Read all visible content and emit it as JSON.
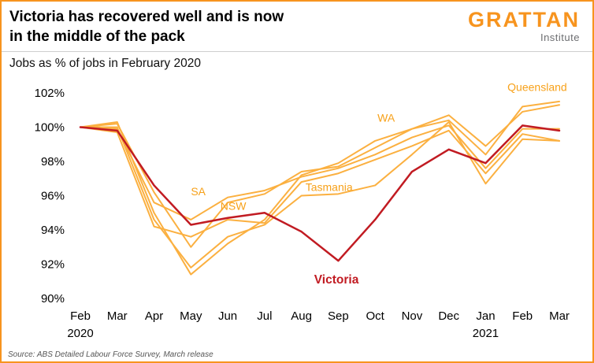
{
  "header": {
    "title_line1": "Victoria has recovered well and is now",
    "title_line2": "in the middle of the pack",
    "logo_brand": "GRATTAN",
    "logo_sub": "Institute"
  },
  "subtitle": "Jobs as % of jobs in February 2020",
  "source": "Source: ABS Detailed Labour Force Survey, March release",
  "colors": {
    "state_line": "#FBB040",
    "state_label": "#F7A11A",
    "victoria_line": "#C11B22",
    "brand_orange": "#F7941E"
  },
  "chart_data": {
    "type": "line",
    "title": "Jobs as % of jobs in February 2020",
    "x_labels": [
      "Feb",
      "Mar",
      "Apr",
      "May",
      "Jun",
      "Jul",
      "Aug",
      "Sep",
      "Oct",
      "Nov",
      "Dec",
      "Jan",
      "Feb",
      "Mar"
    ],
    "x_year_labels": [
      {
        "index": 0,
        "label": "2020"
      },
      {
        "index": 11,
        "label": "2021"
      }
    ],
    "ylim": [
      90,
      102
    ],
    "yticks": [
      90,
      92,
      94,
      96,
      98,
      100,
      102
    ],
    "ytick_suffix": "%",
    "grid": false,
    "legend": "inline-annotations",
    "series": [
      {
        "name": "NSW",
        "color": "#FBB040",
        "width": 2,
        "values": [
          100,
          99.7,
          94.2,
          93.6,
          94.6,
          94.4,
          96.8,
          97.3,
          98.1,
          98.9,
          99.8,
          97.3,
          99.6,
          99.2
        ]
      },
      {
        "name": "Queensland",
        "color": "#FBB040",
        "width": 2,
        "values": [
          100,
          100.2,
          96.2,
          93.0,
          95.6,
          96.1,
          97.4,
          97.7,
          98.8,
          99.9,
          100.4,
          98.4,
          101.2,
          101.5
        ]
      },
      {
        "name": "SA",
        "color": "#FBB040",
        "width": 2,
        "values": [
          100,
          99.9,
          95.6,
          94.6,
          95.9,
          96.3,
          97.1,
          97.6,
          98.4,
          99.4,
          100.1,
          97.6,
          99.9,
          99.9
        ]
      },
      {
        "name": "WA",
        "color": "#FBB040",
        "width": 2,
        "values": [
          100,
          100.3,
          95.0,
          91.4,
          93.2,
          94.6,
          97.2,
          97.9,
          99.2,
          99.9,
          100.7,
          98.9,
          100.9,
          101.3
        ]
      },
      {
        "name": "Tasmania",
        "color": "#FBB040",
        "width": 2,
        "values": [
          100,
          100.0,
          94.6,
          91.8,
          93.6,
          94.3,
          96.0,
          96.1,
          96.6,
          98.4,
          100.3,
          96.7,
          99.3,
          99.2
        ]
      },
      {
        "name": "Victoria",
        "color": "#C11B22",
        "width": 2.5,
        "values": [
          100,
          99.8,
          96.6,
          94.3,
          94.7,
          95.0,
          93.9,
          92.2,
          94.6,
          97.4,
          98.7,
          97.9,
          100.1,
          99.8
        ]
      }
    ],
    "annotations": [
      {
        "text": "Queensland",
        "xi": 12.4,
        "y": 102.35,
        "color": "#F7A11A",
        "bold": false,
        "size": 14
      },
      {
        "text": "WA",
        "xi": 8.3,
        "y": 100.55,
        "color": "#F7A11A",
        "bold": false,
        "size": 14
      },
      {
        "text": "SA",
        "xi": 3.2,
        "y": 96.25,
        "color": "#F7A11A",
        "bold": false,
        "size": 14
      },
      {
        "text": "NSW",
        "xi": 4.15,
        "y": 95.4,
        "color": "#F7A11A",
        "bold": false,
        "size": 14
      },
      {
        "text": "Tasmania",
        "xi": 6.75,
        "y": 96.5,
        "color": "#F7A11A",
        "bold": false,
        "size": 14
      },
      {
        "text": "Victoria",
        "xi": 6.95,
        "y": 91.1,
        "color": "#C11B22",
        "bold": true,
        "size": 15.5
      }
    ]
  }
}
